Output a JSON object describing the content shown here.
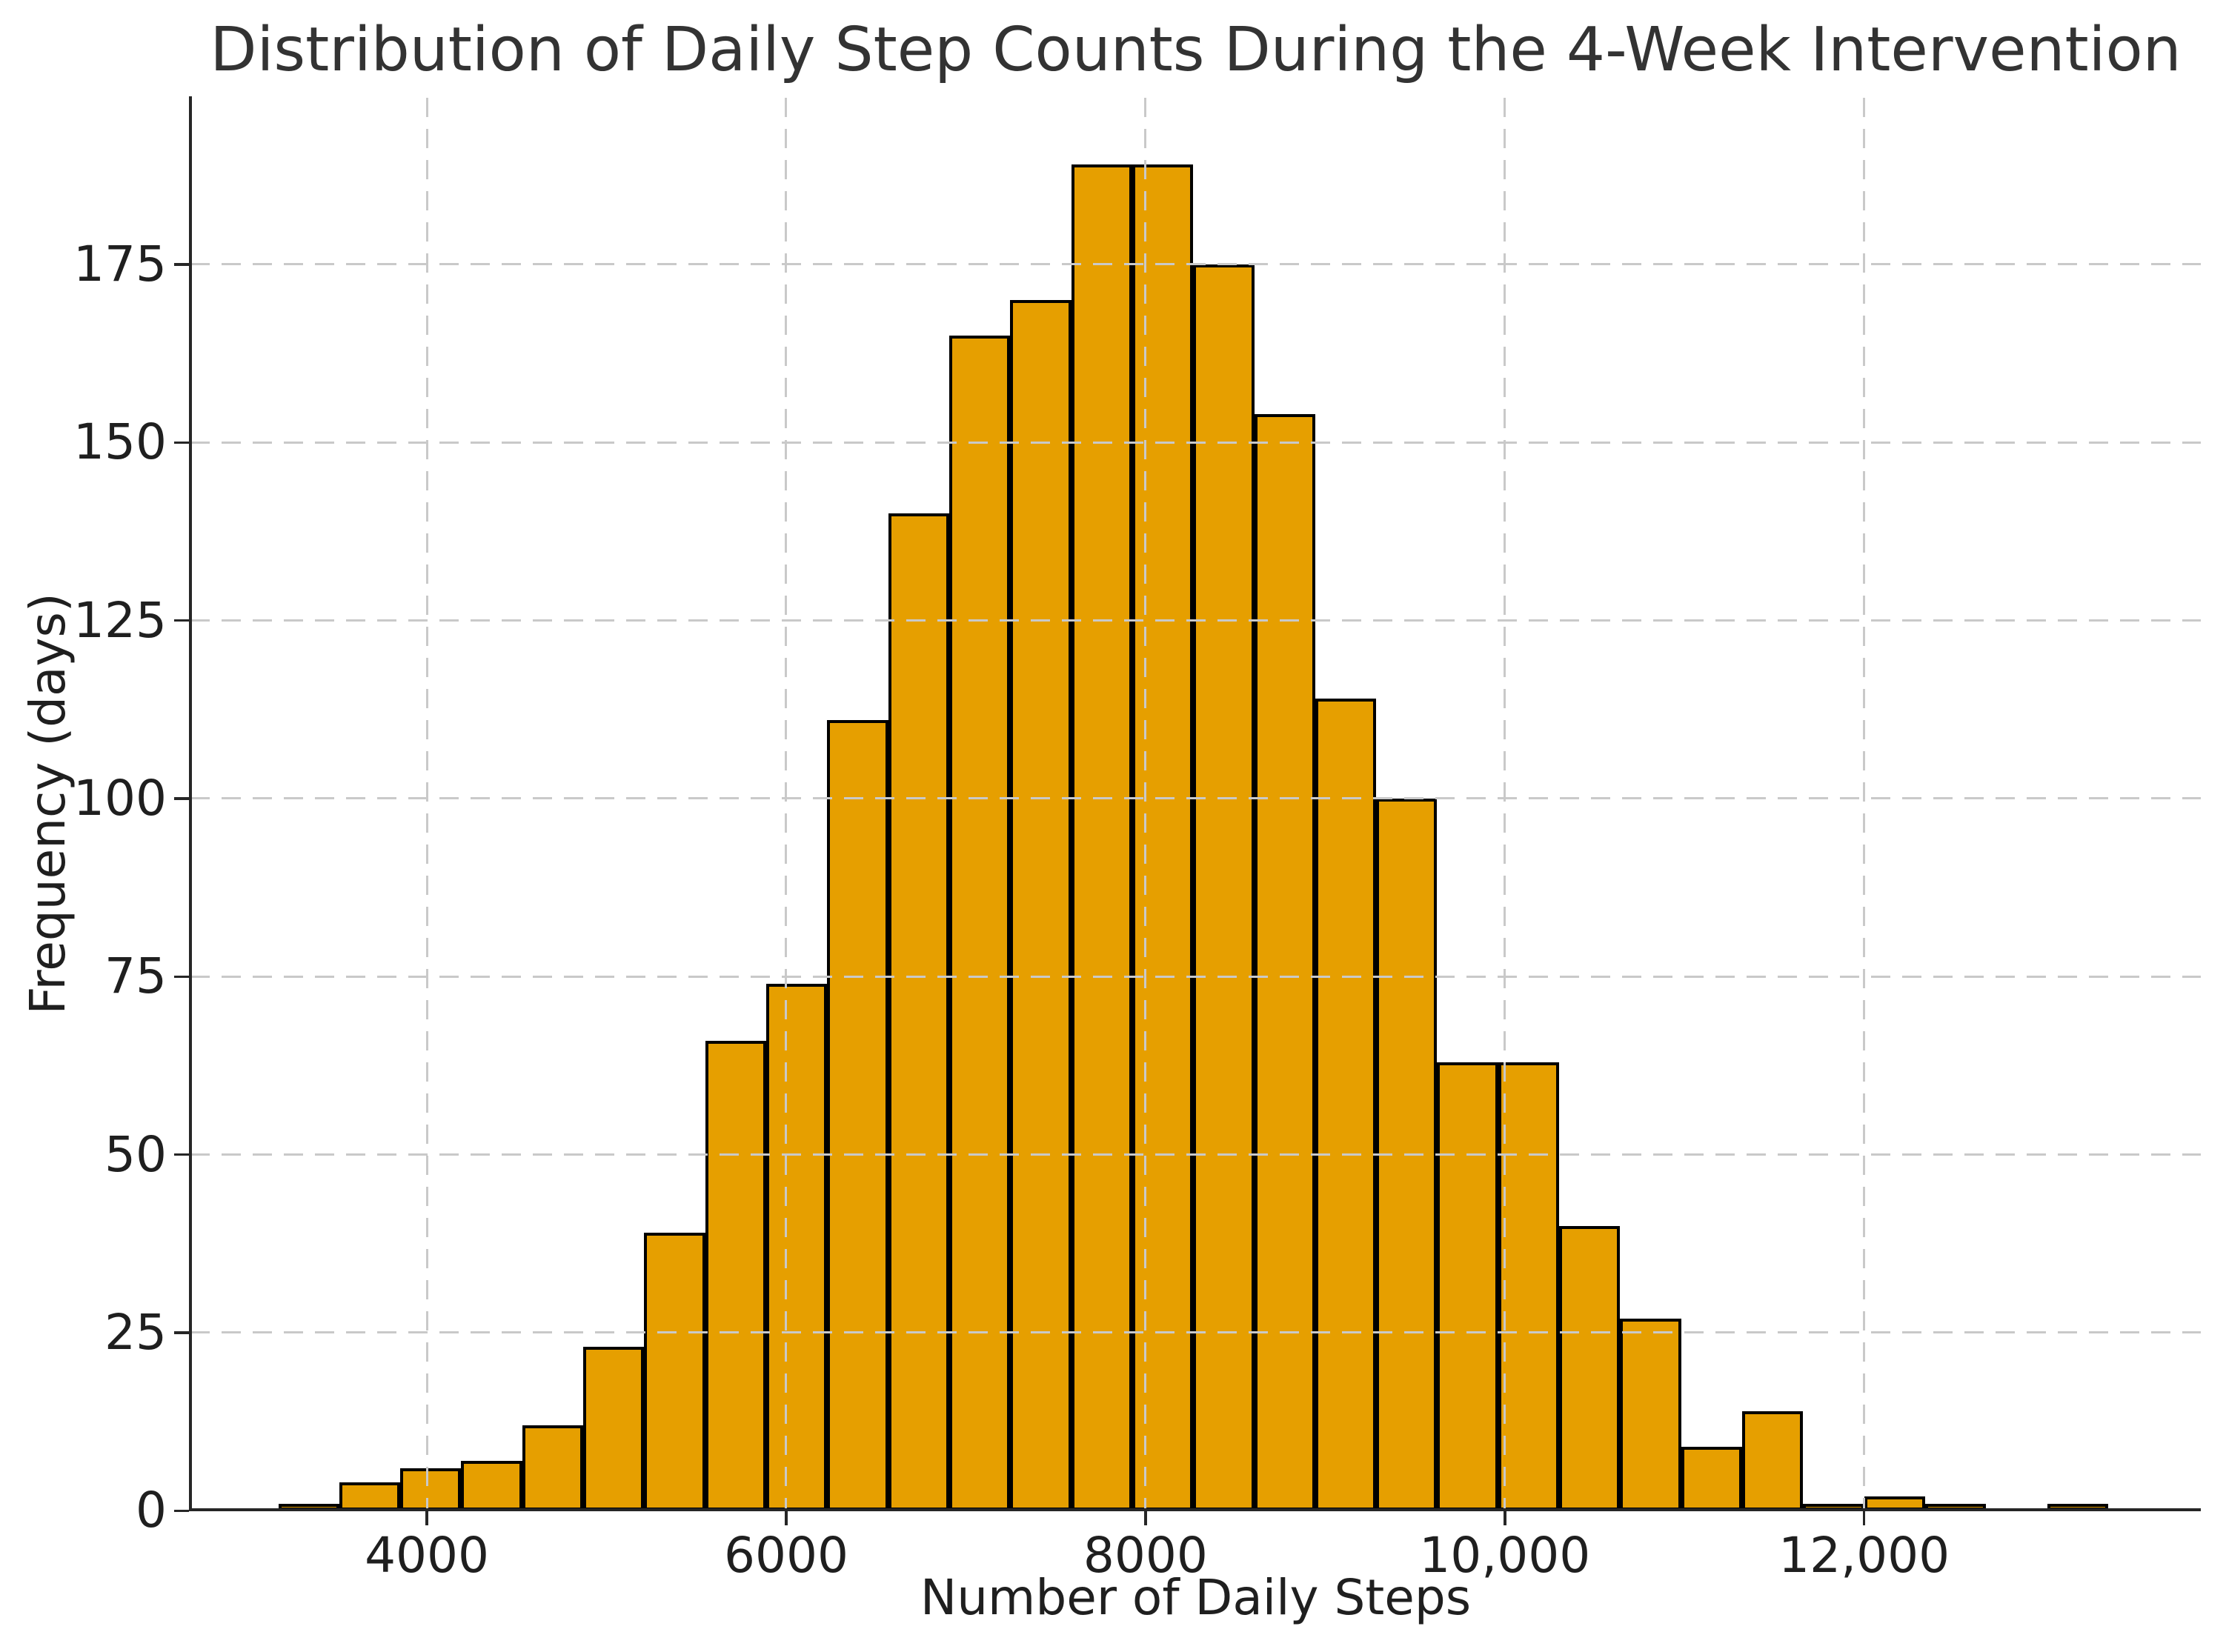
{
  "figure": {
    "background_color": "#ffffff",
    "text_color": "#1f1f1f",
    "title_color": "#333333"
  },
  "chart_data": {
    "type": "bar",
    "subtype": "histogram",
    "title": "Distribution of Daily Step Counts During the 4-Week Intervention",
    "xlabel": "Number of Daily Steps",
    "ylabel": "Frequency (days)",
    "bin_start": 3173,
    "bin_width": 339.5,
    "counts": [
      1,
      4,
      6,
      7,
      12,
      23,
      39,
      66,
      74,
      111,
      140,
      165,
      170,
      189,
      189,
      175,
      154,
      114,
      100,
      63,
      63,
      40,
      27,
      9,
      14,
      1,
      2,
      1,
      0,
      1
    ],
    "total_days": 1960,
    "xlim": [
      2684,
      13874
    ],
    "ylim": [
      0,
      198.4
    ],
    "xticks": [
      {
        "value": 4000,
        "label": "4000"
      },
      {
        "value": 6000,
        "label": "6000"
      },
      {
        "value": 8000,
        "label": "8000"
      },
      {
        "value": 10000,
        "label": "10,000"
      },
      {
        "value": 12000,
        "label": "12,000"
      }
    ],
    "yticks": [
      {
        "value": 0,
        "label": "0"
      },
      {
        "value": 25,
        "label": "25"
      },
      {
        "value": 50,
        "label": "50"
      },
      {
        "value": 75,
        "label": "75"
      },
      {
        "value": 100,
        "label": "100"
      },
      {
        "value": 125,
        "label": "125"
      },
      {
        "value": 150,
        "label": "150"
      },
      {
        "value": 175,
        "label": "175"
      }
    ],
    "grid": true,
    "grid_style": "dashed",
    "grid_color": "#c9c9c9",
    "legend": null,
    "bar_color": "#E69F00",
    "bar_edge_color": "#000000",
    "spine_color": "#262626"
  }
}
